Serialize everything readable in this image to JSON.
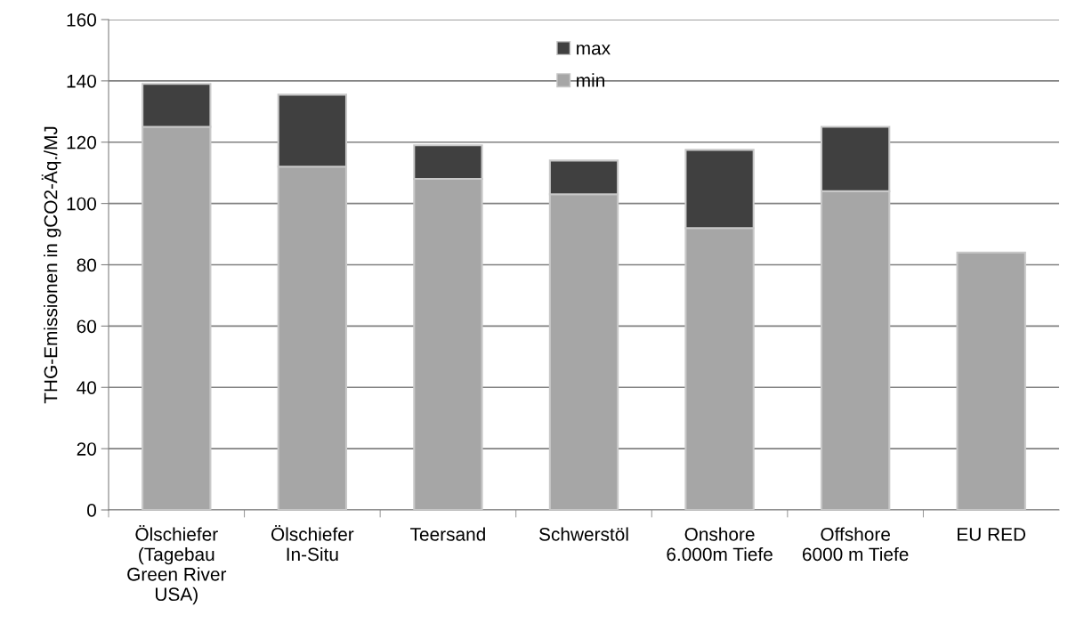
{
  "chart_data": {
    "type": "bar",
    "stacked": true,
    "ylabel": "THG-Emissionen in gCO2-Äq./MJ",
    "categories": [
      "Ölschiefer\n(Tagebau\nGreen River\nUSA)",
      "Ölschiefer\nIn-Situ",
      "Teersand",
      "Schwerstöl",
      "Onshore\n6.000m Tiefe",
      "Offshore\n6000 m Tiefe",
      "EU RED"
    ],
    "series": [
      {
        "name": "min",
        "color": "#a6a6a6",
        "values": [
          125,
          112,
          108,
          103,
          92,
          104,
          84
        ]
      },
      {
        "name": "max",
        "color": "#404040",
        "values": [
          14,
          23.5,
          11,
          11,
          25.5,
          21,
          null
        ]
      }
    ],
    "ylim": [
      0,
      160
    ],
    "yticks": [
      0,
      20,
      40,
      60,
      80,
      100,
      120,
      140,
      160
    ],
    "grid": "y",
    "legend": "top"
  }
}
